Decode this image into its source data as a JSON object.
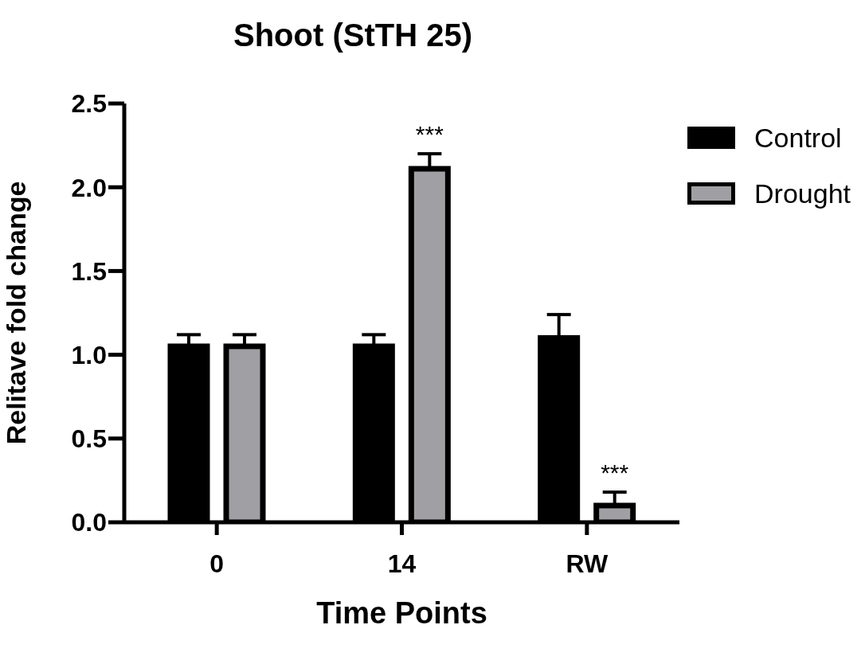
{
  "chart_data": {
    "type": "bar",
    "title": "Shoot (StTH 25)",
    "xlabel": "Time Points",
    "ylabel": "Relitave fold change",
    "categories": [
      "0",
      "14",
      "RW"
    ],
    "series": [
      {
        "name": "Control",
        "color": "#000000",
        "values": [
          1.05,
          1.05,
          1.1
        ],
        "errors": [
          [
            1.05,
            1.12
          ],
          [
            1.05,
            1.12
          ],
          [
            1.1,
            1.24
          ]
        ]
      },
      {
        "name": "Drought",
        "color": "#a0a0a4",
        "values": [
          1.05,
          2.11,
          0.1
        ],
        "value_labels": [
          null,
          "***",
          "***"
        ],
        "errors": [
          [
            1.05,
            1.12
          ],
          [
            2.11,
            2.2
          ],
          [
            0.1,
            0.18
          ]
        ]
      }
    ],
    "ylim": [
      0,
      2.5
    ],
    "yticks": [
      {
        "value": 0,
        "label": "0.0"
      },
      {
        "value": 0.5,
        "label": "0.5"
      },
      {
        "value": 1,
        "label": "1.0"
      },
      {
        "value": 1.5,
        "label": "1.5"
      },
      {
        "value": 2,
        "label": "2.0"
      },
      {
        "value": 2.5,
        "label": "2.5"
      }
    ],
    "grid": false,
    "legend": "top right"
  }
}
